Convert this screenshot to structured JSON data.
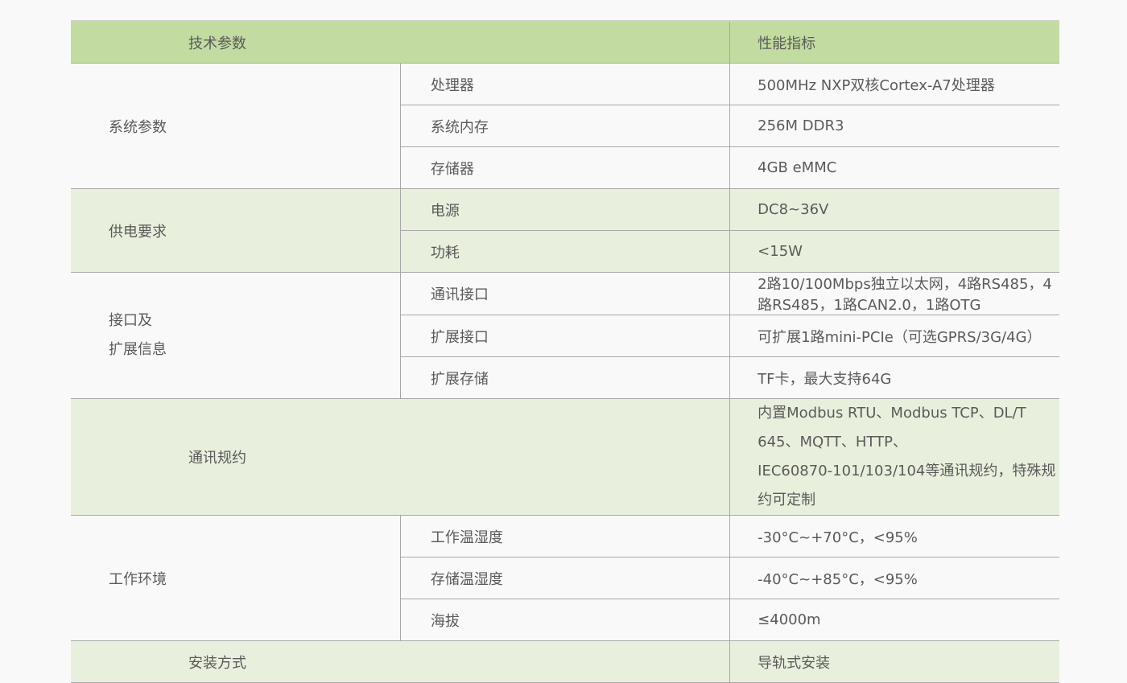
{
  "header": {
    "param": "技术参数",
    "spec": "性能指标"
  },
  "groups": {
    "system": {
      "label": "系统参数",
      "rows": [
        {
          "name": "处理器",
          "value": "500MHz NXP双核Cortex-A7处理器"
        },
        {
          "name": "系统内存",
          "value": "256M  DDR3"
        },
        {
          "name": "存储器",
          "value": "4GB  eMMC"
        }
      ]
    },
    "power": {
      "label": "供电要求",
      "rows": [
        {
          "name": "电源",
          "value": "DC8~36V"
        },
        {
          "name": "功耗",
          "value": "<15W"
        }
      ]
    },
    "interface": {
      "label_line1": "接口及",
      "label_line2": "扩展信息",
      "rows": [
        {
          "name": "通讯接口",
          "value": "2路10/100Mbps独立以太网，4路RS485，4路RS485，1路CAN2.0，1路OTG"
        },
        {
          "name": "扩展接口",
          "value": "可扩展1路mini-PCIe（可选GPRS/3G/4G）"
        },
        {
          "name": "扩展存储",
          "value": "TF卡，最大支持64G"
        }
      ]
    },
    "protocol": {
      "label": "通讯规约",
      "value_line1": "内置Modbus RTU、Modbus TCP、DL/T 645、MQTT、HTTP、",
      "value_line2": "IEC60870-101/103/104等通讯规约，特殊规约可定制"
    },
    "environment": {
      "label": "工作环境",
      "rows": [
        {
          "name": "工作温湿度",
          "value": "-30°C~+70°C，<95%"
        },
        {
          "name": "存储温湿度",
          "value": "-40°C~+85°C，<95%"
        },
        {
          "name": "海拔",
          "value": "≤4000m"
        }
      ]
    },
    "install": {
      "label": "安装方式",
      "value": "导轨式安装"
    }
  },
  "colors": {
    "header_bg": "#c2dba0",
    "alt_bg": "#e8f0dd",
    "page_bg": "#f9f9f9"
  }
}
